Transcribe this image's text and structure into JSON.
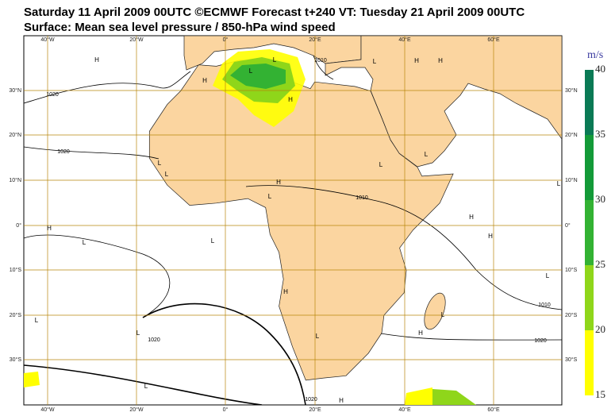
{
  "header": {
    "title": "Saturday 11 April 2009 00UTC ©ECMWF Forecast t+240 VT: Tuesday 21 April 2009 00UTC",
    "subtitle": "Surface: Mean sea level pressure / 850-hPa wind speed"
  },
  "map": {
    "lon_labels": [
      "40°W",
      "20°W",
      "0°",
      "20°E",
      "40°E",
      "60°E"
    ],
    "lat_labels": [
      "30°N",
      "20°N",
      "10°N",
      "0°",
      "10°S",
      "20°S",
      "30°S"
    ],
    "isobar_labels": [
      1020,
      1020,
      1010,
      1010,
      1020,
      1020,
      1010,
      1020
    ],
    "pressure_centers": [
      "H",
      "H",
      "L",
      "L",
      "H",
      "L",
      "L",
      "L",
      "H",
      "L",
      "L",
      "L",
      "L",
      "L",
      "H",
      "L",
      "H",
      "L",
      "H",
      "H",
      "L",
      "L",
      "H",
      "H",
      "L",
      "L",
      "H",
      "L",
      "H"
    ]
  },
  "colorbar": {
    "unit": "m/s",
    "levels": [
      15,
      20,
      25,
      30,
      35,
      40
    ],
    "colors": [
      "#ffff00",
      "#8fd61a",
      "#33b233",
      "#139a38",
      "#0a7a55"
    ]
  }
}
